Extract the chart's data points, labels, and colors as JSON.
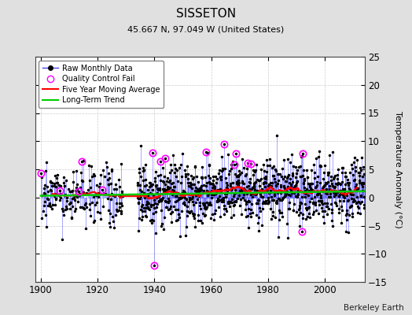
{
  "title": "SISSETON",
  "subtitle": "45.667 N, 97.049 W (United States)",
  "ylabel": "Temperature Anomaly (°C)",
  "credit": "Berkeley Earth",
  "xlim": [
    1898,
    2014
  ],
  "ylim": [
    -15,
    25
  ],
  "yticks": [
    -15,
    -10,
    -5,
    0,
    5,
    10,
    15,
    20,
    25
  ],
  "xticks": [
    1900,
    1920,
    1940,
    1960,
    1980,
    2000
  ],
  "raw_line_color": "#4444ff",
  "raw_dot_color": "#000000",
  "ma_color": "#ff0000",
  "trend_color": "#00cc00",
  "qc_color": "#ff00ff",
  "bg_color": "#e0e0e0",
  "plot_bg": "#ffffff",
  "grid_color": "#cccccc",
  "seed": 42,
  "start_year": 1900.0,
  "end_year": 2013.0,
  "gap_start": 1929,
  "gap_end": 1934,
  "sparse_end": 1928,
  "noise_scale": 2.8,
  "trend_y0": 0.3,
  "trend_y1": 1.1
}
